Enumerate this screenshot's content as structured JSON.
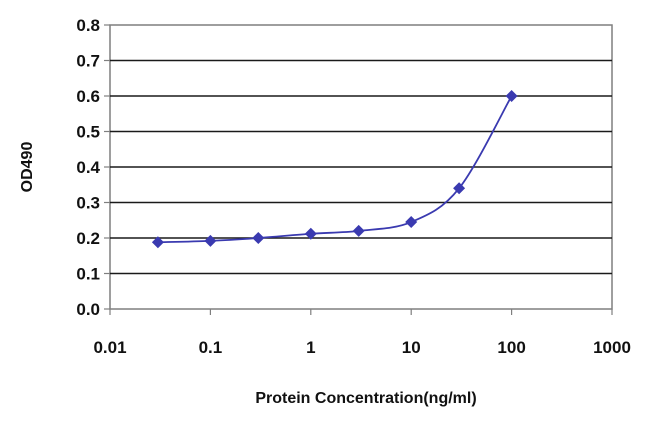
{
  "chart_data": {
    "type": "scatter",
    "title": "",
    "xlabel": "Protein Concentration(ng/ml)",
    "ylabel": "OD490",
    "xscale": "log",
    "xlim": [
      0.01,
      1000
    ],
    "ylim": [
      0,
      0.8
    ],
    "grid": true,
    "legend": "none",
    "x_ticks": [
      "0.01",
      "0.1",
      "1",
      "10",
      "100",
      "1000"
    ],
    "y_ticks": [
      "0.0",
      "0.1",
      "0.2",
      "0.3",
      "0.4",
      "0.5",
      "0.6",
      "0.7",
      "0.8"
    ],
    "series": [
      {
        "x": [
          0.03,
          0.1,
          0.3,
          1,
          3,
          10,
          30,
          100
        ],
        "y": [
          0.188,
          0.192,
          0.2,
          0.212,
          0.22,
          0.245,
          0.34,
          0.6
        ],
        "color": "#3a3ab0"
      }
    ]
  }
}
